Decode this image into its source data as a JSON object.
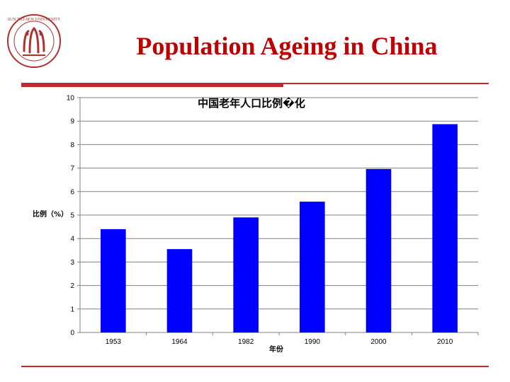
{
  "slide": {
    "title": "Population Ageing in China",
    "accent_color": "#c1272d",
    "logo": "university-seal-icon",
    "logo_text": "SUN YAT-SEN UNIVERSITY"
  },
  "chart_data": {
    "type": "bar",
    "title": "中国老年人口比例�化",
    "xlabel": "年份",
    "ylabel": "比例（%）",
    "categories": [
      "1953",
      "1964",
      "1982",
      "1990",
      "2000",
      "2010"
    ],
    "values": [
      4.4,
      3.55,
      4.9,
      5.57,
      6.96,
      8.87
    ],
    "ylim": [
      0,
      10
    ],
    "yticks": [
      0,
      1,
      2,
      3,
      4,
      5,
      6,
      7,
      8,
      9,
      10
    ],
    "grid": true,
    "legend": "none",
    "bar_color": "#0000ff"
  }
}
